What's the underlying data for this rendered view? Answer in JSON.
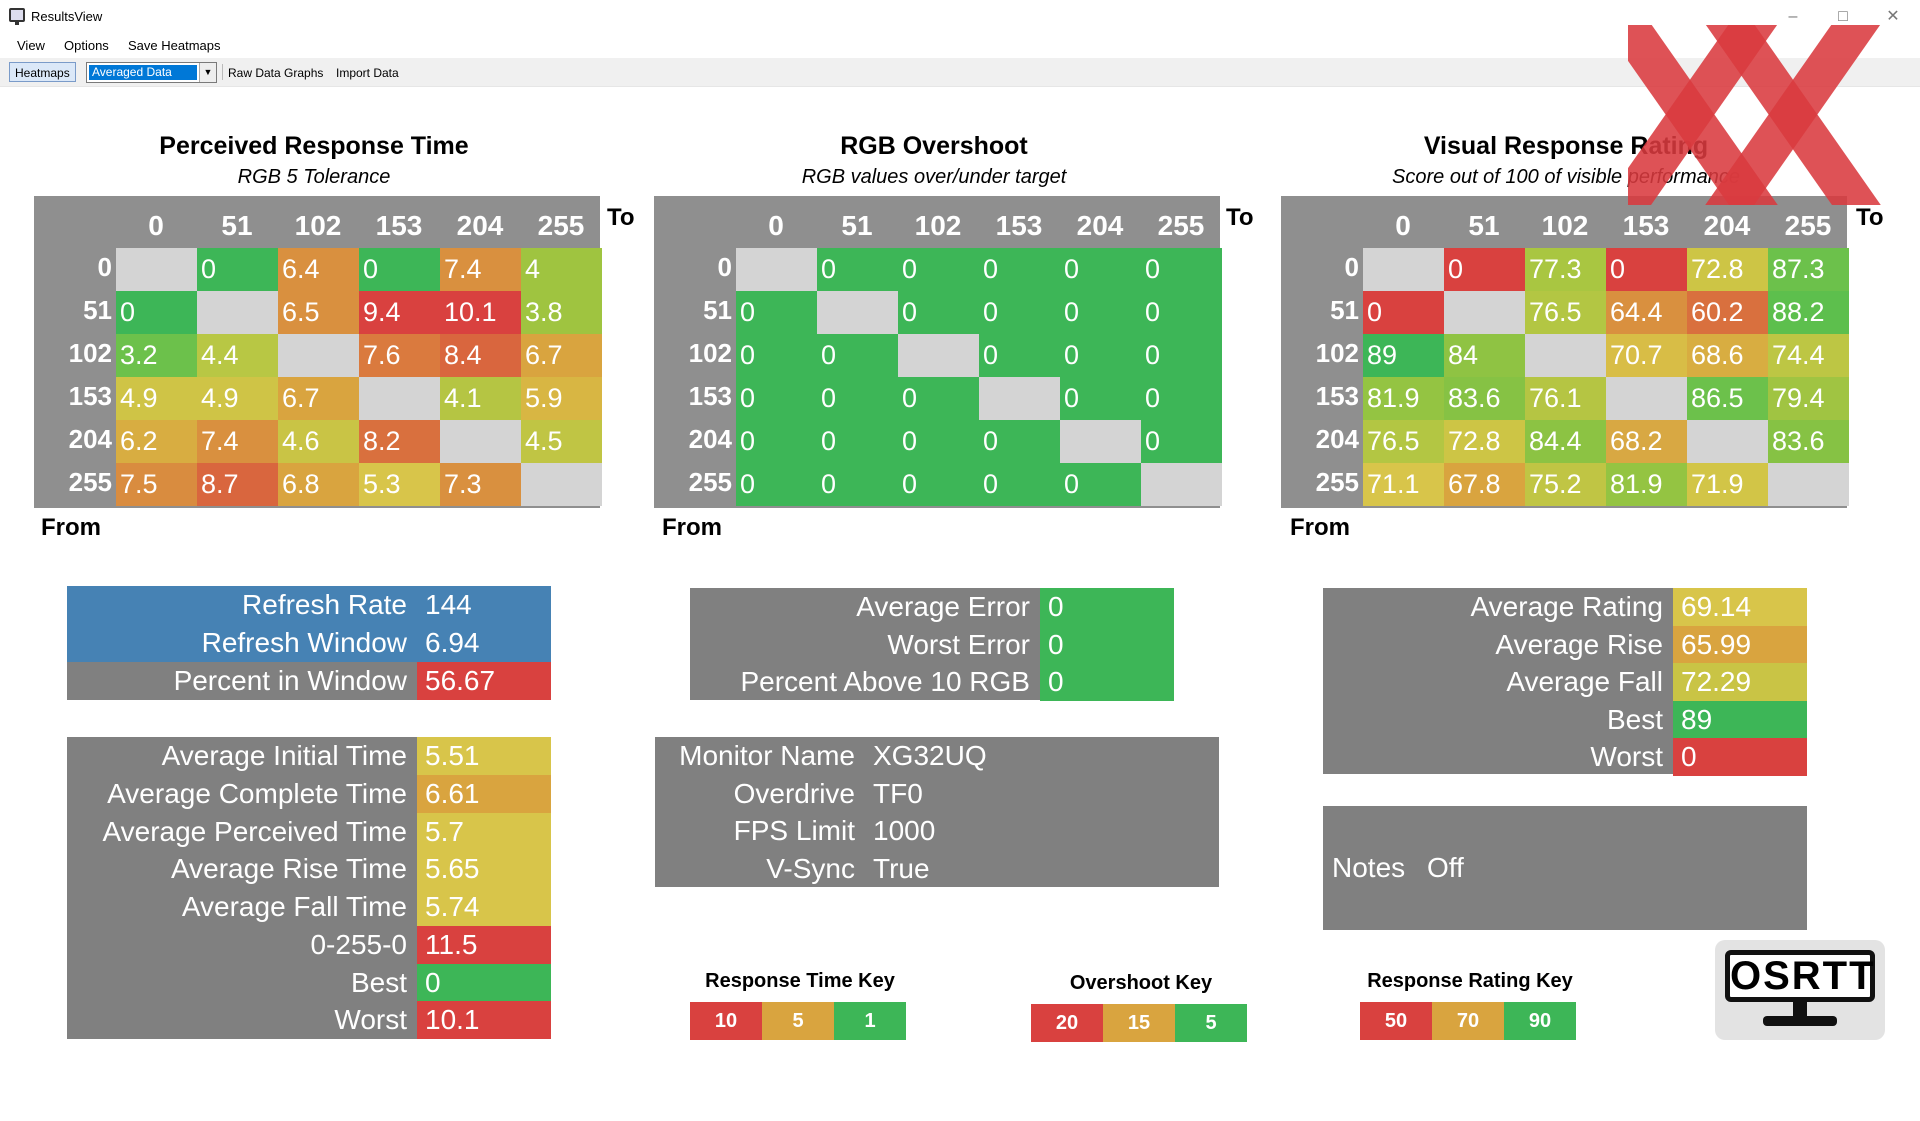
{
  "window": {
    "title": "ResultsView"
  },
  "menu": [
    "View",
    "Options",
    "Save Heatmaps"
  ],
  "toolbar": {
    "heatmaps": "Heatmaps",
    "selected": "Averaged Data",
    "raw": "Raw Data Graphs",
    "import": "Import Data"
  },
  "axis": {
    "to": "To",
    "from": "From"
  },
  "colors": {
    "gray": "#808080",
    "blue": "#4682b4",
    "green": "#3db657",
    "red": "#d9413f",
    "yellow": "#d8c54a",
    "orange": "#d9903f",
    "empty": "#d4d4d4"
  },
  "heatmaps": [
    {
      "title": "Perceived Response Time",
      "subtitle": "RGB 5 Tolerance",
      "cols": [
        "0",
        "51",
        "102",
        "153",
        "204",
        "255"
      ],
      "rows": [
        "0",
        "51",
        "102",
        "153",
        "204",
        "255"
      ],
      "cells": [
        [
          "",
          "0",
          "6.4",
          "0",
          "7.4",
          "4"
        ],
        [
          "0",
          "",
          "6.5",
          "9.4",
          "10.1",
          "3.8"
        ],
        [
          "3.2",
          "4.4",
          "",
          "7.6",
          "8.4",
          "6.7"
        ],
        [
          "4.9",
          "4.9",
          "6.7",
          "",
          "4.1",
          "5.9"
        ],
        [
          "6.2",
          "7.4",
          "4.6",
          "8.2",
          "",
          "4.5"
        ],
        [
          "7.5",
          "8.7",
          "6.8",
          "5.3",
          "7.3",
          ""
        ]
      ],
      "cell_colors": [
        [
          "#d4d4d4",
          "#3db657",
          "#d9903f",
          "#3db657",
          "#d9903f",
          "#9fc440"
        ],
        [
          "#3db657",
          "#d4d4d4",
          "#d9903f",
          "#d9413f",
          "#d9413f",
          "#9fc440"
        ],
        [
          "#6cc14b",
          "#b8c744",
          "#d4d4d4",
          "#da7a3e",
          "#d9663e",
          "#d9a43f"
        ],
        [
          "#cfc446",
          "#cfc446",
          "#d9a43f",
          "#d4d4d4",
          "#b5c543",
          "#d8b643"
        ],
        [
          "#d8ad41",
          "#d9903f",
          "#c9c445",
          "#d9703e",
          "#d4d4d4",
          "#c0c544"
        ],
        [
          "#d98c3f",
          "#d9663e",
          "#d9a43f",
          "#d8c54a",
          "#d9903f",
          "#d4d4d4"
        ]
      ]
    },
    {
      "title": "RGB Overshoot",
      "subtitle": "RGB values over/under target",
      "cols": [
        "0",
        "51",
        "102",
        "153",
        "204",
        "255"
      ],
      "rows": [
        "0",
        "51",
        "102",
        "153",
        "204",
        "255"
      ],
      "cells": [
        [
          "",
          "0",
          "0",
          "0",
          "0",
          "0"
        ],
        [
          "0",
          "",
          "0",
          "0",
          "0",
          "0"
        ],
        [
          "0",
          "0",
          "",
          "0",
          "0",
          "0"
        ],
        [
          "0",
          "0",
          "0",
          "",
          "0",
          "0"
        ],
        [
          "0",
          "0",
          "0",
          "0",
          "",
          "0"
        ],
        [
          "0",
          "0",
          "0",
          "0",
          "0",
          ""
        ]
      ],
      "cell_colors": [
        [
          "#d4d4d4",
          "#3db657",
          "#3db657",
          "#3db657",
          "#3db657",
          "#3db657"
        ],
        [
          "#3db657",
          "#d4d4d4",
          "#3db657",
          "#3db657",
          "#3db657",
          "#3db657"
        ],
        [
          "#3db657",
          "#3db657",
          "#d4d4d4",
          "#3db657",
          "#3db657",
          "#3db657"
        ],
        [
          "#3db657",
          "#3db657",
          "#3db657",
          "#d4d4d4",
          "#3db657",
          "#3db657"
        ],
        [
          "#3db657",
          "#3db657",
          "#3db657",
          "#3db657",
          "#d4d4d4",
          "#3db657"
        ],
        [
          "#3db657",
          "#3db657",
          "#3db657",
          "#3db657",
          "#3db657",
          "#d4d4d4"
        ]
      ]
    },
    {
      "title": "Visual Response Rating",
      "subtitle": "Score out of 100 of visible performance",
      "cols": [
        "0",
        "51",
        "102",
        "153",
        "204",
        "255"
      ],
      "rows": [
        "0",
        "51",
        "102",
        "153",
        "204",
        "255"
      ],
      "cells": [
        [
          "",
          "0",
          "77.3",
          "0",
          "72.8",
          "87.3"
        ],
        [
          "0",
          "",
          "76.5",
          "64.4",
          "60.2",
          "88.2"
        ],
        [
          "89",
          "84",
          "",
          "70.7",
          "68.6",
          "74.4"
        ],
        [
          "81.9",
          "83.6",
          "76.1",
          "",
          "86.5",
          "79.4"
        ],
        [
          "76.5",
          "72.8",
          "84.4",
          "68.2",
          "",
          "83.6"
        ],
        [
          "71.1",
          "67.8",
          "75.2",
          "81.9",
          "71.9",
          ""
        ]
      ],
      "cell_colors": [
        [
          "#d4d4d4",
          "#d9413f",
          "#a9c641",
          "#d9413f",
          "#cdc545",
          "#6cc14b"
        ],
        [
          "#d9413f",
          "#d4d4d4",
          "#b3c643",
          "#d9903f",
          "#d9703e",
          "#5dbf4d"
        ],
        [
          "#3db657",
          "#8fc343",
          "#d4d4d4",
          "#d8bd46",
          "#d8ad41",
          "#bdc644"
        ],
        [
          "#94c442",
          "#86c244",
          "#b5c543",
          "#d4d4d4",
          "#6cc14b",
          "#a0c442"
        ],
        [
          "#b3c643",
          "#cdc545",
          "#8cc343",
          "#d8a843",
          "#d4d4d4",
          "#86c244"
        ],
        [
          "#d8c54a",
          "#d9a43f",
          "#c0c544",
          "#94c442",
          "#d2c547",
          "#d4d4d4"
        ]
      ]
    }
  ],
  "panels": {
    "refresh": [
      {
        "label": "Refresh Rate",
        "value": "144",
        "bg": "#4682b4",
        "vbg": "#4682b4"
      },
      {
        "label": "Refresh Window",
        "value": "6.94",
        "bg": "#4682b4",
        "vbg": "#4682b4"
      },
      {
        "label": "Percent in Window",
        "value": "56.67",
        "bg": "#808080",
        "vbg": "#d9413f"
      }
    ],
    "times": [
      {
        "label": "Average Initial Time",
        "value": "5.51",
        "vbg": "#d8c54a"
      },
      {
        "label": "Average Complete Time",
        "value": "6.61",
        "vbg": "#d9a43f"
      },
      {
        "label": "Average Perceived Time",
        "value": "5.7",
        "vbg": "#d8c54a"
      },
      {
        "label": "Average Rise Time",
        "value": "5.65",
        "vbg": "#d8c54a"
      },
      {
        "label": "Average Fall Time",
        "value": "5.74",
        "vbg": "#d8c54a"
      },
      {
        "label": "0-255-0",
        "value": "11.5",
        "vbg": "#d9413f"
      },
      {
        "label": "Best",
        "value": "0",
        "vbg": "#3db657"
      },
      {
        "label": "Worst",
        "value": "10.1",
        "vbg": "#d9413f"
      }
    ],
    "error": [
      {
        "label": "Average Error",
        "value": "0",
        "vbg": "#3db657"
      },
      {
        "label": "Worst Error",
        "value": "0",
        "vbg": "#3db657"
      },
      {
        "label": "Percent Above 10 RGB",
        "value": "0",
        "vbg": "#3db657"
      }
    ],
    "monitor": [
      {
        "label": "Monitor Name",
        "value": "XG32UQ"
      },
      {
        "label": "Overdrive",
        "value": "TF0"
      },
      {
        "label": "FPS Limit",
        "value": "1000"
      },
      {
        "label": "V-Sync",
        "value": "True"
      }
    ],
    "rating": [
      {
        "label": "Average Rating",
        "value": "69.14",
        "vbg": "#d8c54a"
      },
      {
        "label": "Average Rise",
        "value": "65.99",
        "vbg": "#d9a43f"
      },
      {
        "label": "Average Fall",
        "value": "72.29",
        "vbg": "#c9c445"
      },
      {
        "label": "Best",
        "value": "89",
        "vbg": "#3db657"
      },
      {
        "label": "Worst",
        "value": "0",
        "vbg": "#d9413f"
      }
    ],
    "notes": {
      "label": "Notes",
      "value": "Off"
    }
  },
  "keys": [
    {
      "title": "Response Time Key",
      "values": [
        "10",
        "5",
        "1"
      ],
      "colors": [
        "#d9413f",
        "#d9a43f",
        "#3db657"
      ]
    },
    {
      "title": "Overshoot Key",
      "values": [
        "20",
        "15",
        "5"
      ],
      "colors": [
        "#d9413f",
        "#d9a43f",
        "#3db657"
      ]
    },
    {
      "title": "Response Rating Key",
      "values": [
        "50",
        "70",
        "90"
      ],
      "colors": [
        "#d9413f",
        "#d9a43f",
        "#3db657"
      ]
    }
  ],
  "logo": {
    "text": "OSRTT"
  }
}
